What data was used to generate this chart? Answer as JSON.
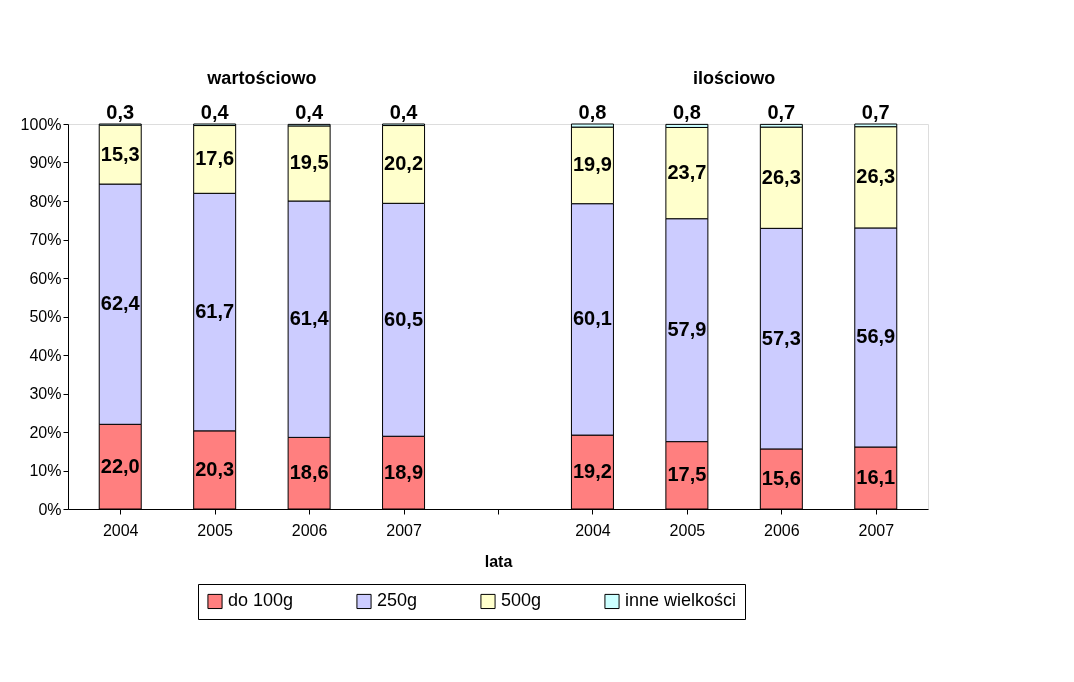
{
  "chart_data": {
    "type": "bar",
    "stacked": true,
    "xlabel": "lata",
    "annotations": [
      "wartościowo",
      "ilościowo"
    ],
    "categories": [
      "2004",
      "2005",
      "2006",
      "2007",
      null,
      "2004",
      "2005",
      "2006",
      "2007"
    ],
    "ylim": [
      0,
      100
    ],
    "yticks": [
      {
        "value": 0,
        "label": "0%"
      },
      {
        "value": 10,
        "label": "10%"
      },
      {
        "value": 20,
        "label": "20%"
      },
      {
        "value": 30,
        "label": "30%"
      },
      {
        "value": 40,
        "label": "40%"
      },
      {
        "value": 50,
        "label": "50%"
      },
      {
        "value": 60,
        "label": "60%"
      },
      {
        "value": 70,
        "label": "70%"
      },
      {
        "value": 80,
        "label": "80%"
      },
      {
        "value": 90,
        "label": "90%"
      },
      {
        "value": 100,
        "label": "100%"
      }
    ],
    "grid": false,
    "legend": "bottom",
    "series": [
      {
        "name": "do 100g",
        "color": "#ff7f7f",
        "values": [
          22.0,
          20.3,
          18.6,
          18.9,
          null,
          19.2,
          17.5,
          15.6,
          16.1
        ],
        "value_labels": [
          "22,0",
          "20,3",
          "18,6",
          "18,9",
          null,
          "19,2",
          "17,5",
          "15,6",
          "16,1"
        ]
      },
      {
        "name": "250g",
        "color": "#ccccff",
        "values": [
          62.4,
          61.7,
          61.4,
          60.5,
          null,
          60.1,
          57.9,
          57.3,
          56.9
        ],
        "value_labels": [
          "62,4",
          "61,7",
          "61,4",
          "60,5",
          null,
          "60,1",
          "57,9",
          "57,3",
          "56,9"
        ]
      },
      {
        "name": "500g",
        "color": "#ffffcc",
        "values": [
          15.3,
          17.6,
          19.5,
          20.2,
          null,
          19.9,
          23.7,
          26.3,
          26.3
        ],
        "value_labels": [
          "15,3",
          "17,6",
          "19,5",
          "20,2",
          null,
          "19,9",
          "23,7",
          "26,3",
          "26,3"
        ]
      },
      {
        "name": "inne wielkości",
        "color": "#ccffff",
        "values": [
          0.3,
          0.4,
          0.4,
          0.4,
          null,
          0.8,
          0.8,
          0.7,
          0.7
        ],
        "value_labels": [
          "0,3",
          "0,4",
          "0,4",
          "0,4",
          null,
          "0,8",
          "0,8",
          "0,7",
          "0,7"
        ]
      }
    ]
  }
}
